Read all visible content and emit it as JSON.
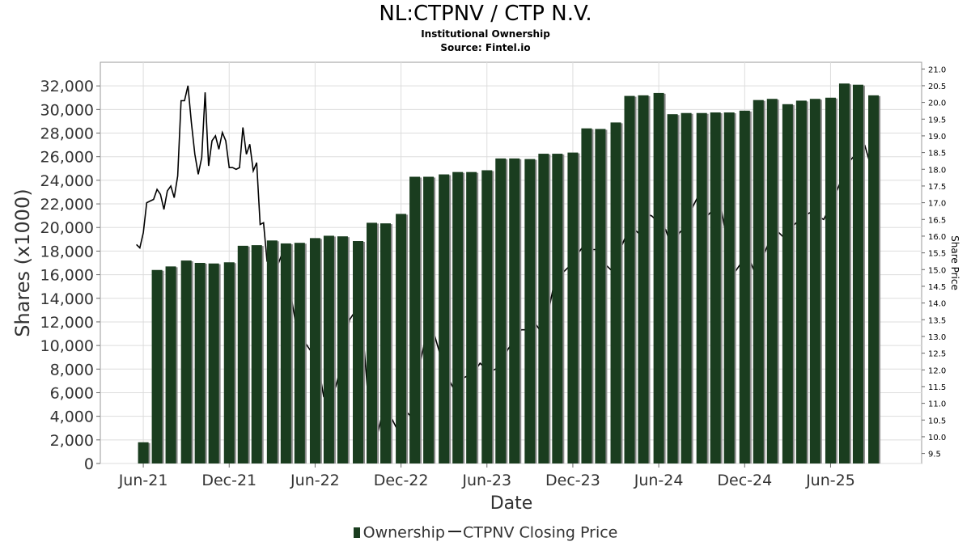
{
  "header": {
    "title": "NL:CTPNV / CTP N.V.",
    "subtitle1": "Institutional Ownership",
    "subtitle2": "Source: Fintel.io"
  },
  "legend": {
    "ownership": "Ownership",
    "price": "CTPNV Closing Price"
  },
  "colors": {
    "bar": "#1a3d1f",
    "bar_shadow": "#8a8a8a",
    "line": "#000000",
    "grid": "#dddddd"
  },
  "chart_data": {
    "type": "bar",
    "title": "NL:CTPNV / CTP N.V.",
    "xlabel": "Date",
    "ylabel": "Shares (x1000)",
    "y2label": "Share Price",
    "ylim": [
      0,
      34000
    ],
    "y2lim": [
      9.2,
      21.2
    ],
    "yticks": [
      "0",
      "2,000",
      "4,000",
      "6,000",
      "8,000",
      "10,000",
      "12,000",
      "14,000",
      "16,000",
      "18,000",
      "20,000",
      "22,000",
      "24,000",
      "26,000",
      "28,000",
      "30,000",
      "32,000"
    ],
    "y2ticks": [
      "9.5",
      "10.0",
      "10.5",
      "11.0",
      "11.5",
      "12.0",
      "12.5",
      "13.0",
      "13.5",
      "14.0",
      "14.5",
      "15.0",
      "15.5",
      "16.0",
      "16.5",
      "17.0",
      "17.5",
      "18.0",
      "18.5",
      "19.0",
      "19.5",
      "20.0",
      "20.5",
      "21.0"
    ],
    "xticks": [
      {
        "label": "Jun-21",
        "t": 2021.42
      },
      {
        "label": "Dec-21",
        "t": 2021.92
      },
      {
        "label": "Jun-22",
        "t": 2022.42
      },
      {
        "label": "Dec-22",
        "t": 2022.92
      },
      {
        "label": "Jun-23",
        "t": 2023.42
      },
      {
        "label": "Dec-23",
        "t": 2023.92
      },
      {
        "label": "Jun-24",
        "t": 2024.42
      },
      {
        "label": "Dec-24",
        "t": 2024.92
      },
      {
        "label": "Jun-25",
        "t": 2025.42
      }
    ],
    "xlim": [
      2021.17,
      2025.95
    ],
    "series": [
      {
        "name": "Ownership",
        "type": "bar",
        "points": [
          {
            "t": 2021.42,
            "v": 1800
          },
          {
            "t": 2021.5,
            "v": 16400
          },
          {
            "t": 2021.58,
            "v": 16700
          },
          {
            "t": 2021.67,
            "v": 17200
          },
          {
            "t": 2021.75,
            "v": 17000
          },
          {
            "t": 2021.83,
            "v": 16950
          },
          {
            "t": 2021.92,
            "v": 17050
          },
          {
            "t": 2022.0,
            "v": 18450
          },
          {
            "t": 2022.08,
            "v": 18500
          },
          {
            "t": 2022.17,
            "v": 18900
          },
          {
            "t": 2022.25,
            "v": 18650
          },
          {
            "t": 2022.33,
            "v": 18700
          },
          {
            "t": 2022.42,
            "v": 19100
          },
          {
            "t": 2022.5,
            "v": 19300
          },
          {
            "t": 2022.58,
            "v": 19250
          },
          {
            "t": 2022.67,
            "v": 18850
          },
          {
            "t": 2022.75,
            "v": 20400
          },
          {
            "t": 2022.83,
            "v": 20350
          },
          {
            "t": 2022.92,
            "v": 21150
          },
          {
            "t": 2023.0,
            "v": 24300
          },
          {
            "t": 2023.08,
            "v": 24300
          },
          {
            "t": 2023.17,
            "v": 24500
          },
          {
            "t": 2023.25,
            "v": 24700
          },
          {
            "t": 2023.33,
            "v": 24700
          },
          {
            "t": 2023.42,
            "v": 24850
          },
          {
            "t": 2023.5,
            "v": 25850
          },
          {
            "t": 2023.58,
            "v": 25850
          },
          {
            "t": 2023.67,
            "v": 25800
          },
          {
            "t": 2023.75,
            "v": 26250
          },
          {
            "t": 2023.83,
            "v": 26250
          },
          {
            "t": 2023.92,
            "v": 26350
          },
          {
            "t": 2024.0,
            "v": 28400
          },
          {
            "t": 2024.08,
            "v": 28350
          },
          {
            "t": 2024.17,
            "v": 28900
          },
          {
            "t": 2024.25,
            "v": 31150
          },
          {
            "t": 2024.33,
            "v": 31200
          },
          {
            "t": 2024.42,
            "v": 31400
          },
          {
            "t": 2024.5,
            "v": 29600
          },
          {
            "t": 2024.58,
            "v": 29700
          },
          {
            "t": 2024.67,
            "v": 29700
          },
          {
            "t": 2024.75,
            "v": 29750
          },
          {
            "t": 2024.83,
            "v": 29750
          },
          {
            "t": 2024.92,
            "v": 29900
          },
          {
            "t": 2025.0,
            "v": 30800
          },
          {
            "t": 2025.08,
            "v": 30900
          },
          {
            "t": 2025.17,
            "v": 30450
          },
          {
            "t": 2025.25,
            "v": 30750
          },
          {
            "t": 2025.33,
            "v": 30900
          },
          {
            "t": 2025.42,
            "v": 31000
          },
          {
            "t": 2025.5,
            "v": 32200
          },
          {
            "t": 2025.58,
            "v": 32100
          },
          {
            "t": 2025.67,
            "v": 31200
          }
        ]
      },
      {
        "name": "CTPNV Closing Price",
        "type": "line",
        "axis": "right",
        "points": [
          {
            "t": 2021.38,
            "v": 15.75
          },
          {
            "t": 2021.4,
            "v": 15.65
          },
          {
            "t": 2021.42,
            "v": 16.1
          },
          {
            "t": 2021.44,
            "v": 17.0
          },
          {
            "t": 2021.46,
            "v": 17.05
          },
          {
            "t": 2021.48,
            "v": 17.1
          },
          {
            "t": 2021.5,
            "v": 17.4
          },
          {
            "t": 2021.52,
            "v": 17.25
          },
          {
            "t": 2021.54,
            "v": 16.8
          },
          {
            "t": 2021.56,
            "v": 17.35
          },
          {
            "t": 2021.58,
            "v": 17.5
          },
          {
            "t": 2021.6,
            "v": 17.15
          },
          {
            "t": 2021.62,
            "v": 17.8
          },
          {
            "t": 2021.64,
            "v": 20.05
          },
          {
            "t": 2021.66,
            "v": 20.05
          },
          {
            "t": 2021.68,
            "v": 20.5
          },
          {
            "t": 2021.7,
            "v": 19.4
          },
          {
            "t": 2021.72,
            "v": 18.45
          },
          {
            "t": 2021.74,
            "v": 17.85
          },
          {
            "t": 2021.76,
            "v": 18.35
          },
          {
            "t": 2021.78,
            "v": 20.3
          },
          {
            "t": 2021.8,
            "v": 18.1
          },
          {
            "t": 2021.82,
            "v": 18.85
          },
          {
            "t": 2021.84,
            "v": 19.0
          },
          {
            "t": 2021.86,
            "v": 18.6
          },
          {
            "t": 2021.88,
            "v": 19.1
          },
          {
            "t": 2021.9,
            "v": 18.85
          },
          {
            "t": 2021.92,
            "v": 18.05
          },
          {
            "t": 2021.94,
            "v": 18.05
          },
          {
            "t": 2021.96,
            "v": 18.0
          },
          {
            "t": 2021.98,
            "v": 18.05
          },
          {
            "t": 2022.0,
            "v": 19.25
          },
          {
            "t": 2022.02,
            "v": 18.45
          },
          {
            "t": 2022.04,
            "v": 18.75
          },
          {
            "t": 2022.06,
            "v": 17.95
          },
          {
            "t": 2022.08,
            "v": 18.2
          },
          {
            "t": 2022.1,
            "v": 16.35
          },
          {
            "t": 2022.12,
            "v": 16.4
          },
          {
            "t": 2022.14,
            "v": 15.25
          },
          {
            "t": 2022.17,
            "v": 15.2
          },
          {
            "t": 2022.2,
            "v": 15.1
          },
          {
            "t": 2022.23,
            "v": 15.5
          },
          {
            "t": 2022.27,
            "v": 14.5
          },
          {
            "t": 2022.31,
            "v": 13.3
          },
          {
            "t": 2022.35,
            "v": 12.9
          },
          {
            "t": 2022.39,
            "v": 12.6
          },
          {
            "t": 2022.43,
            "v": 12.4
          },
          {
            "t": 2022.47,
            "v": 11.2
          },
          {
            "t": 2022.5,
            "v": 11.0
          },
          {
            "t": 2022.54,
            "v": 11.5
          },
          {
            "t": 2022.58,
            "v": 12.3
          },
          {
            "t": 2022.62,
            "v": 13.5
          },
          {
            "t": 2022.66,
            "v": 13.8
          },
          {
            "t": 2022.7,
            "v": 13.0
          },
          {
            "t": 2022.74,
            "v": 10.4
          },
          {
            "t": 2022.78,
            "v": 10.0
          },
          {
            "t": 2022.82,
            "v": 10.9
          },
          {
            "t": 2022.86,
            "v": 10.6
          },
          {
            "t": 2022.9,
            "v": 10.2
          },
          {
            "t": 2022.94,
            "v": 10.8
          },
          {
            "t": 2022.98,
            "v": 10.6
          },
          {
            "t": 2023.02,
            "v": 11.9
          },
          {
            "t": 2023.06,
            "v": 12.9
          },
          {
            "t": 2023.1,
            "v": 13.3
          },
          {
            "t": 2023.14,
            "v": 12.6
          },
          {
            "t": 2023.18,
            "v": 11.9
          },
          {
            "t": 2023.22,
            "v": 11.5
          },
          {
            "t": 2023.26,
            "v": 11.7
          },
          {
            "t": 2023.3,
            "v": 11.8
          },
          {
            "t": 2023.34,
            "v": 11.9
          },
          {
            "t": 2023.38,
            "v": 12.2
          },
          {
            "t": 2023.42,
            "v": 12.0
          },
          {
            "t": 2023.46,
            "v": 12.0
          },
          {
            "t": 2023.5,
            "v": 12.1
          },
          {
            "t": 2023.54,
            "v": 12.6
          },
          {
            "t": 2023.58,
            "v": 12.9
          },
          {
            "t": 2023.62,
            "v": 13.2
          },
          {
            "t": 2023.66,
            "v": 13.2
          },
          {
            "t": 2023.7,
            "v": 13.4
          },
          {
            "t": 2023.74,
            "v": 13.1
          },
          {
            "t": 2023.78,
            "v": 13.8
          },
          {
            "t": 2023.82,
            "v": 14.8
          },
          {
            "t": 2023.86,
            "v": 14.9
          },
          {
            "t": 2023.9,
            "v": 15.1
          },
          {
            "t": 2023.94,
            "v": 15.4
          },
          {
            "t": 2023.98,
            "v": 15.7
          },
          {
            "t": 2024.02,
            "v": 15.6
          },
          {
            "t": 2024.06,
            "v": 15.6
          },
          {
            "t": 2024.1,
            "v": 15.2
          },
          {
            "t": 2024.14,
            "v": 15.0
          },
          {
            "t": 2024.18,
            "v": 15.4
          },
          {
            "t": 2024.22,
            "v": 15.9
          },
          {
            "t": 2024.26,
            "v": 16.3
          },
          {
            "t": 2024.3,
            "v": 16.1
          },
          {
            "t": 2024.34,
            "v": 16.7
          },
          {
            "t": 2024.38,
            "v": 16.6
          },
          {
            "t": 2024.42,
            "v": 16.4
          },
          {
            "t": 2024.46,
            "v": 16.2
          },
          {
            "t": 2024.5,
            "v": 15.6
          },
          {
            "t": 2024.54,
            "v": 16.1
          },
          {
            "t": 2024.58,
            "v": 16.3
          },
          {
            "t": 2024.62,
            "v": 16.9
          },
          {
            "t": 2024.66,
            "v": 17.3
          },
          {
            "t": 2024.7,
            "v": 16.6
          },
          {
            "t": 2024.74,
            "v": 16.8
          },
          {
            "t": 2024.78,
            "v": 16.9
          },
          {
            "t": 2024.82,
            "v": 15.8
          },
          {
            "t": 2024.86,
            "v": 14.9
          },
          {
            "t": 2024.9,
            "v": 15.2
          },
          {
            "t": 2024.94,
            "v": 15.4
          },
          {
            "t": 2024.98,
            "v": 14.9
          },
          {
            "t": 2025.02,
            "v": 15.3
          },
          {
            "t": 2025.06,
            "v": 15.8
          },
          {
            "t": 2025.1,
            "v": 16.2
          },
          {
            "t": 2025.14,
            "v": 16.0
          },
          {
            "t": 2025.18,
            "v": 16.2
          },
          {
            "t": 2025.22,
            "v": 16.4
          },
          {
            "t": 2025.26,
            "v": 16.6
          },
          {
            "t": 2025.3,
            "v": 16.7
          },
          {
            "t": 2025.34,
            "v": 16.6
          },
          {
            "t": 2025.38,
            "v": 16.5
          },
          {
            "t": 2025.42,
            "v": 16.9
          },
          {
            "t": 2025.46,
            "v": 17.4
          },
          {
            "t": 2025.5,
            "v": 17.9
          },
          {
            "t": 2025.54,
            "v": 18.3
          },
          {
            "t": 2025.58,
            "v": 18.5
          },
          {
            "t": 2025.62,
            "v": 18.7
          },
          {
            "t": 2025.66,
            "v": 18.0
          },
          {
            "t": 2025.69,
            "v": 17.9
          }
        ]
      }
    ]
  }
}
